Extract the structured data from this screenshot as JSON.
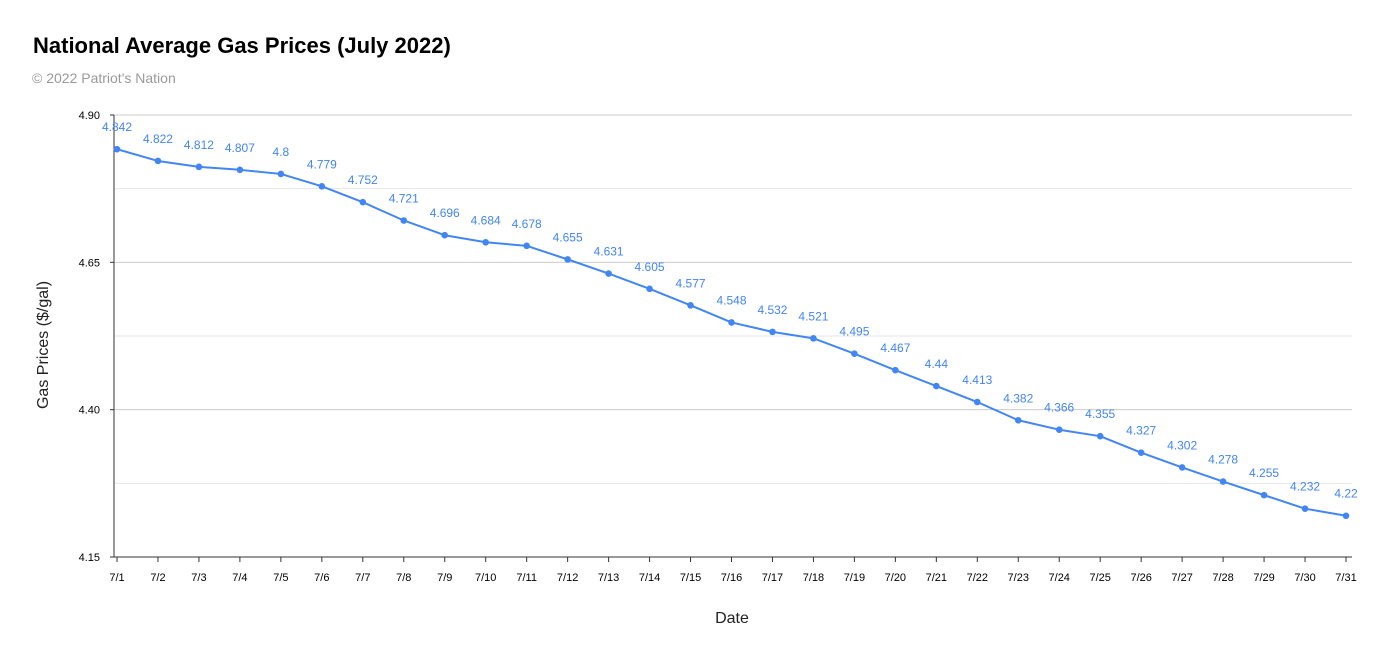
{
  "title": "National Average Gas Prices (July 2022)",
  "subtitle": "© 2022 Patriot's Nation",
  "colors": {
    "line": "#4285f4",
    "grid": "#cccccc",
    "minor_grid": "#e6e6e6",
    "axis": "#333333"
  },
  "chart_data": {
    "type": "line",
    "title": "National Average Gas Prices (July 2022)",
    "xlabel": "Date",
    "ylabel": "Gas Prices ($/gal)",
    "ylim": [
      4.15,
      4.9
    ],
    "yticks": [
      "4.15",
      "4.40",
      "4.65",
      "4.90"
    ],
    "grid": true,
    "legend": "none",
    "categories": [
      "7/1",
      "7/2",
      "7/3",
      "7/4",
      "7/5",
      "7/6",
      "7/7",
      "7/8",
      "7/9",
      "7/10",
      "7/11",
      "7/12",
      "7/13",
      "7/14",
      "7/15",
      "7/16",
      "7/17",
      "7/18",
      "7/19",
      "7/20",
      "7/21",
      "7/22",
      "7/23",
      "7/24",
      "7/25",
      "7/26",
      "7/27",
      "7/28",
      "7/29",
      "7/30",
      "7/31"
    ],
    "series": [
      {
        "values": [
          4.842,
          4.822,
          4.812,
          4.807,
          4.8,
          4.779,
          4.752,
          4.721,
          4.696,
          4.684,
          4.678,
          4.655,
          4.631,
          4.605,
          4.577,
          4.548,
          4.532,
          4.521,
          4.495,
          4.467,
          4.44,
          4.413,
          4.382,
          4.366,
          4.355,
          4.327,
          4.302,
          4.278,
          4.255,
          4.232,
          4.22
        ]
      }
    ],
    "data_labels": [
      "4.842",
      "4.822",
      "4.812",
      "4.807",
      "4.8",
      "4.779",
      "4.752",
      "4.721",
      "4.696",
      "4.684",
      "4.678",
      "4.655",
      "4.631",
      "4.605",
      "4.577",
      "4.548",
      "4.532",
      "4.521",
      "4.495",
      "4.467",
      "4.44",
      "4.413",
      "4.382",
      "4.366",
      "4.355",
      "4.327",
      "4.302",
      "4.278",
      "4.255",
      "4.232",
      "4.22"
    ]
  }
}
